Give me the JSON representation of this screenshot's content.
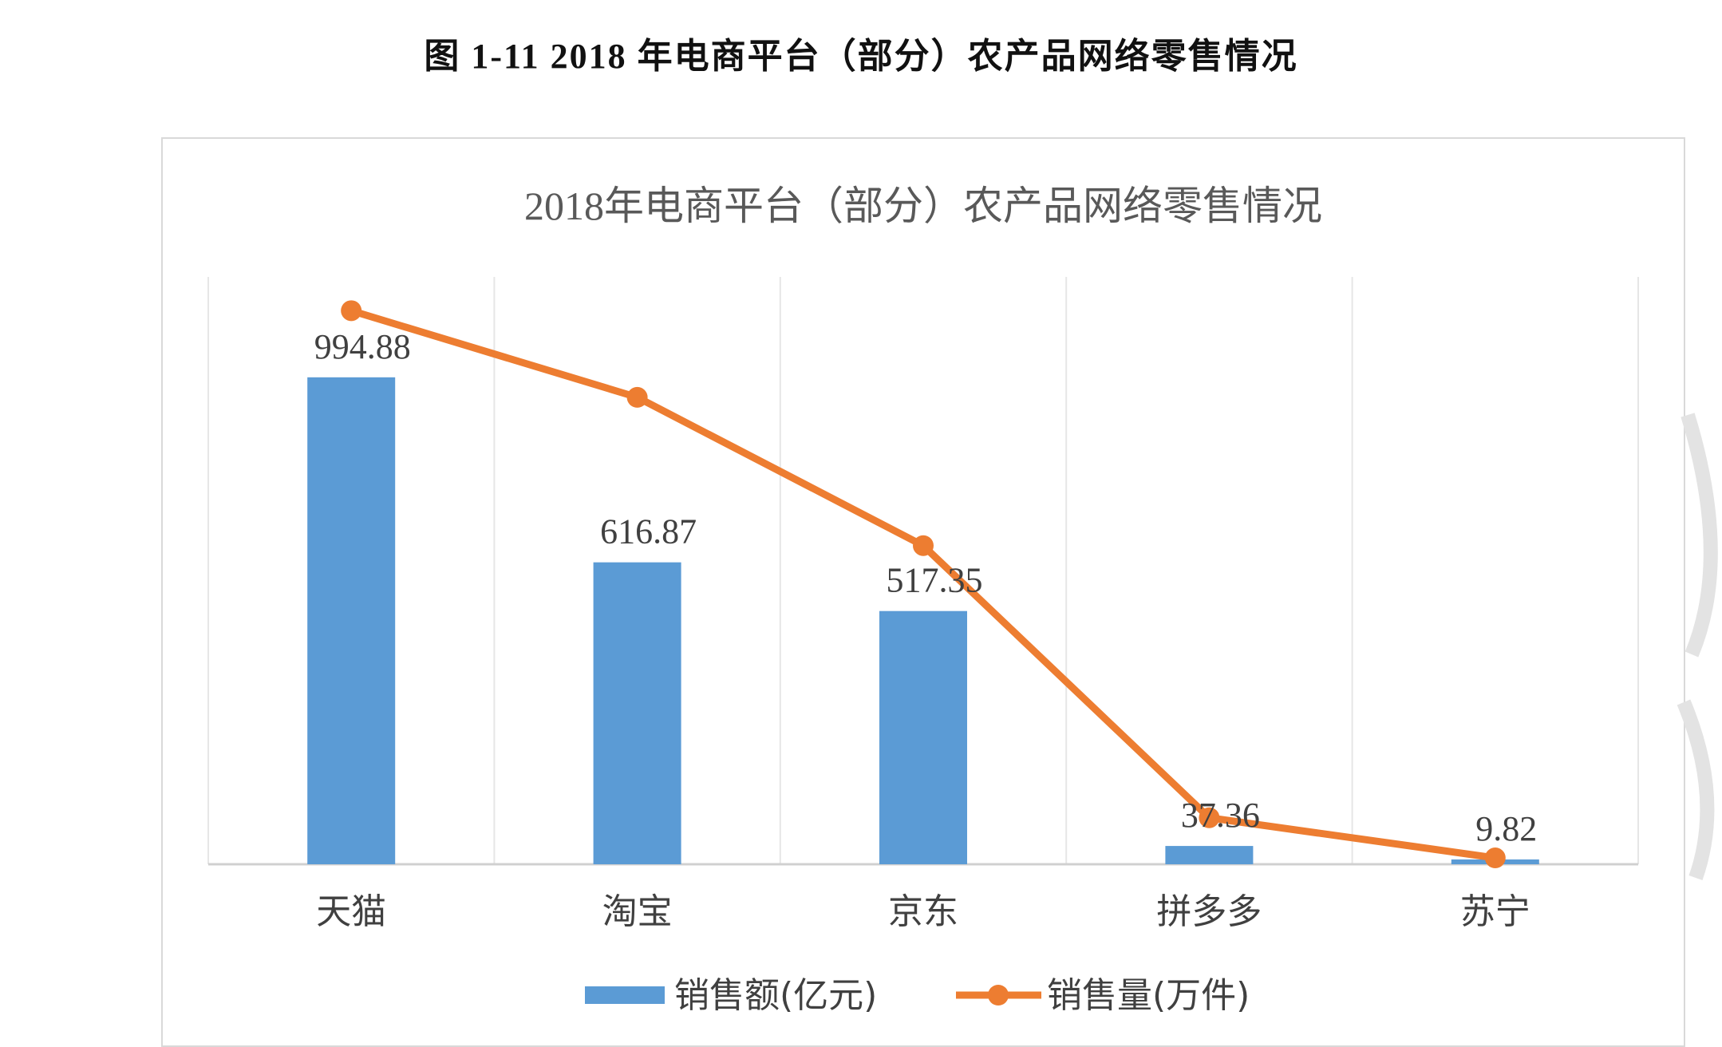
{
  "caption": "图 1-11 2018 年电商平台（部分）农产品网络零售情况",
  "chart_data": {
    "type": "bar+line",
    "title": "2018年电商平台（部分）农产品网络零售情况",
    "categories": [
      "天猫",
      "淘宝",
      "京东",
      "拼多多",
      "苏宁"
    ],
    "series": [
      {
        "name": "销售额(亿元)",
        "type": "bar",
        "color": "#5b9bd5",
        "values": [
          994.88,
          616.87,
          517.35,
          37.36,
          9.82
        ],
        "data_labels": [
          "994.88",
          "616.87",
          "517.35",
          "37.36",
          "9.82"
        ]
      },
      {
        "name": "销售量(万件)",
        "type": "line",
        "color": "#ed7d31",
        "axis": "secondary-hidden",
        "values": [
          1131,
          954,
          651,
          95,
          13
        ]
      }
    ],
    "ylim": [
      0,
      1200
    ],
    "y2lim": [
      0,
      1200
    ],
    "grid": "vertical category separators",
    "axes_visible": false,
    "legend": "bottom"
  }
}
